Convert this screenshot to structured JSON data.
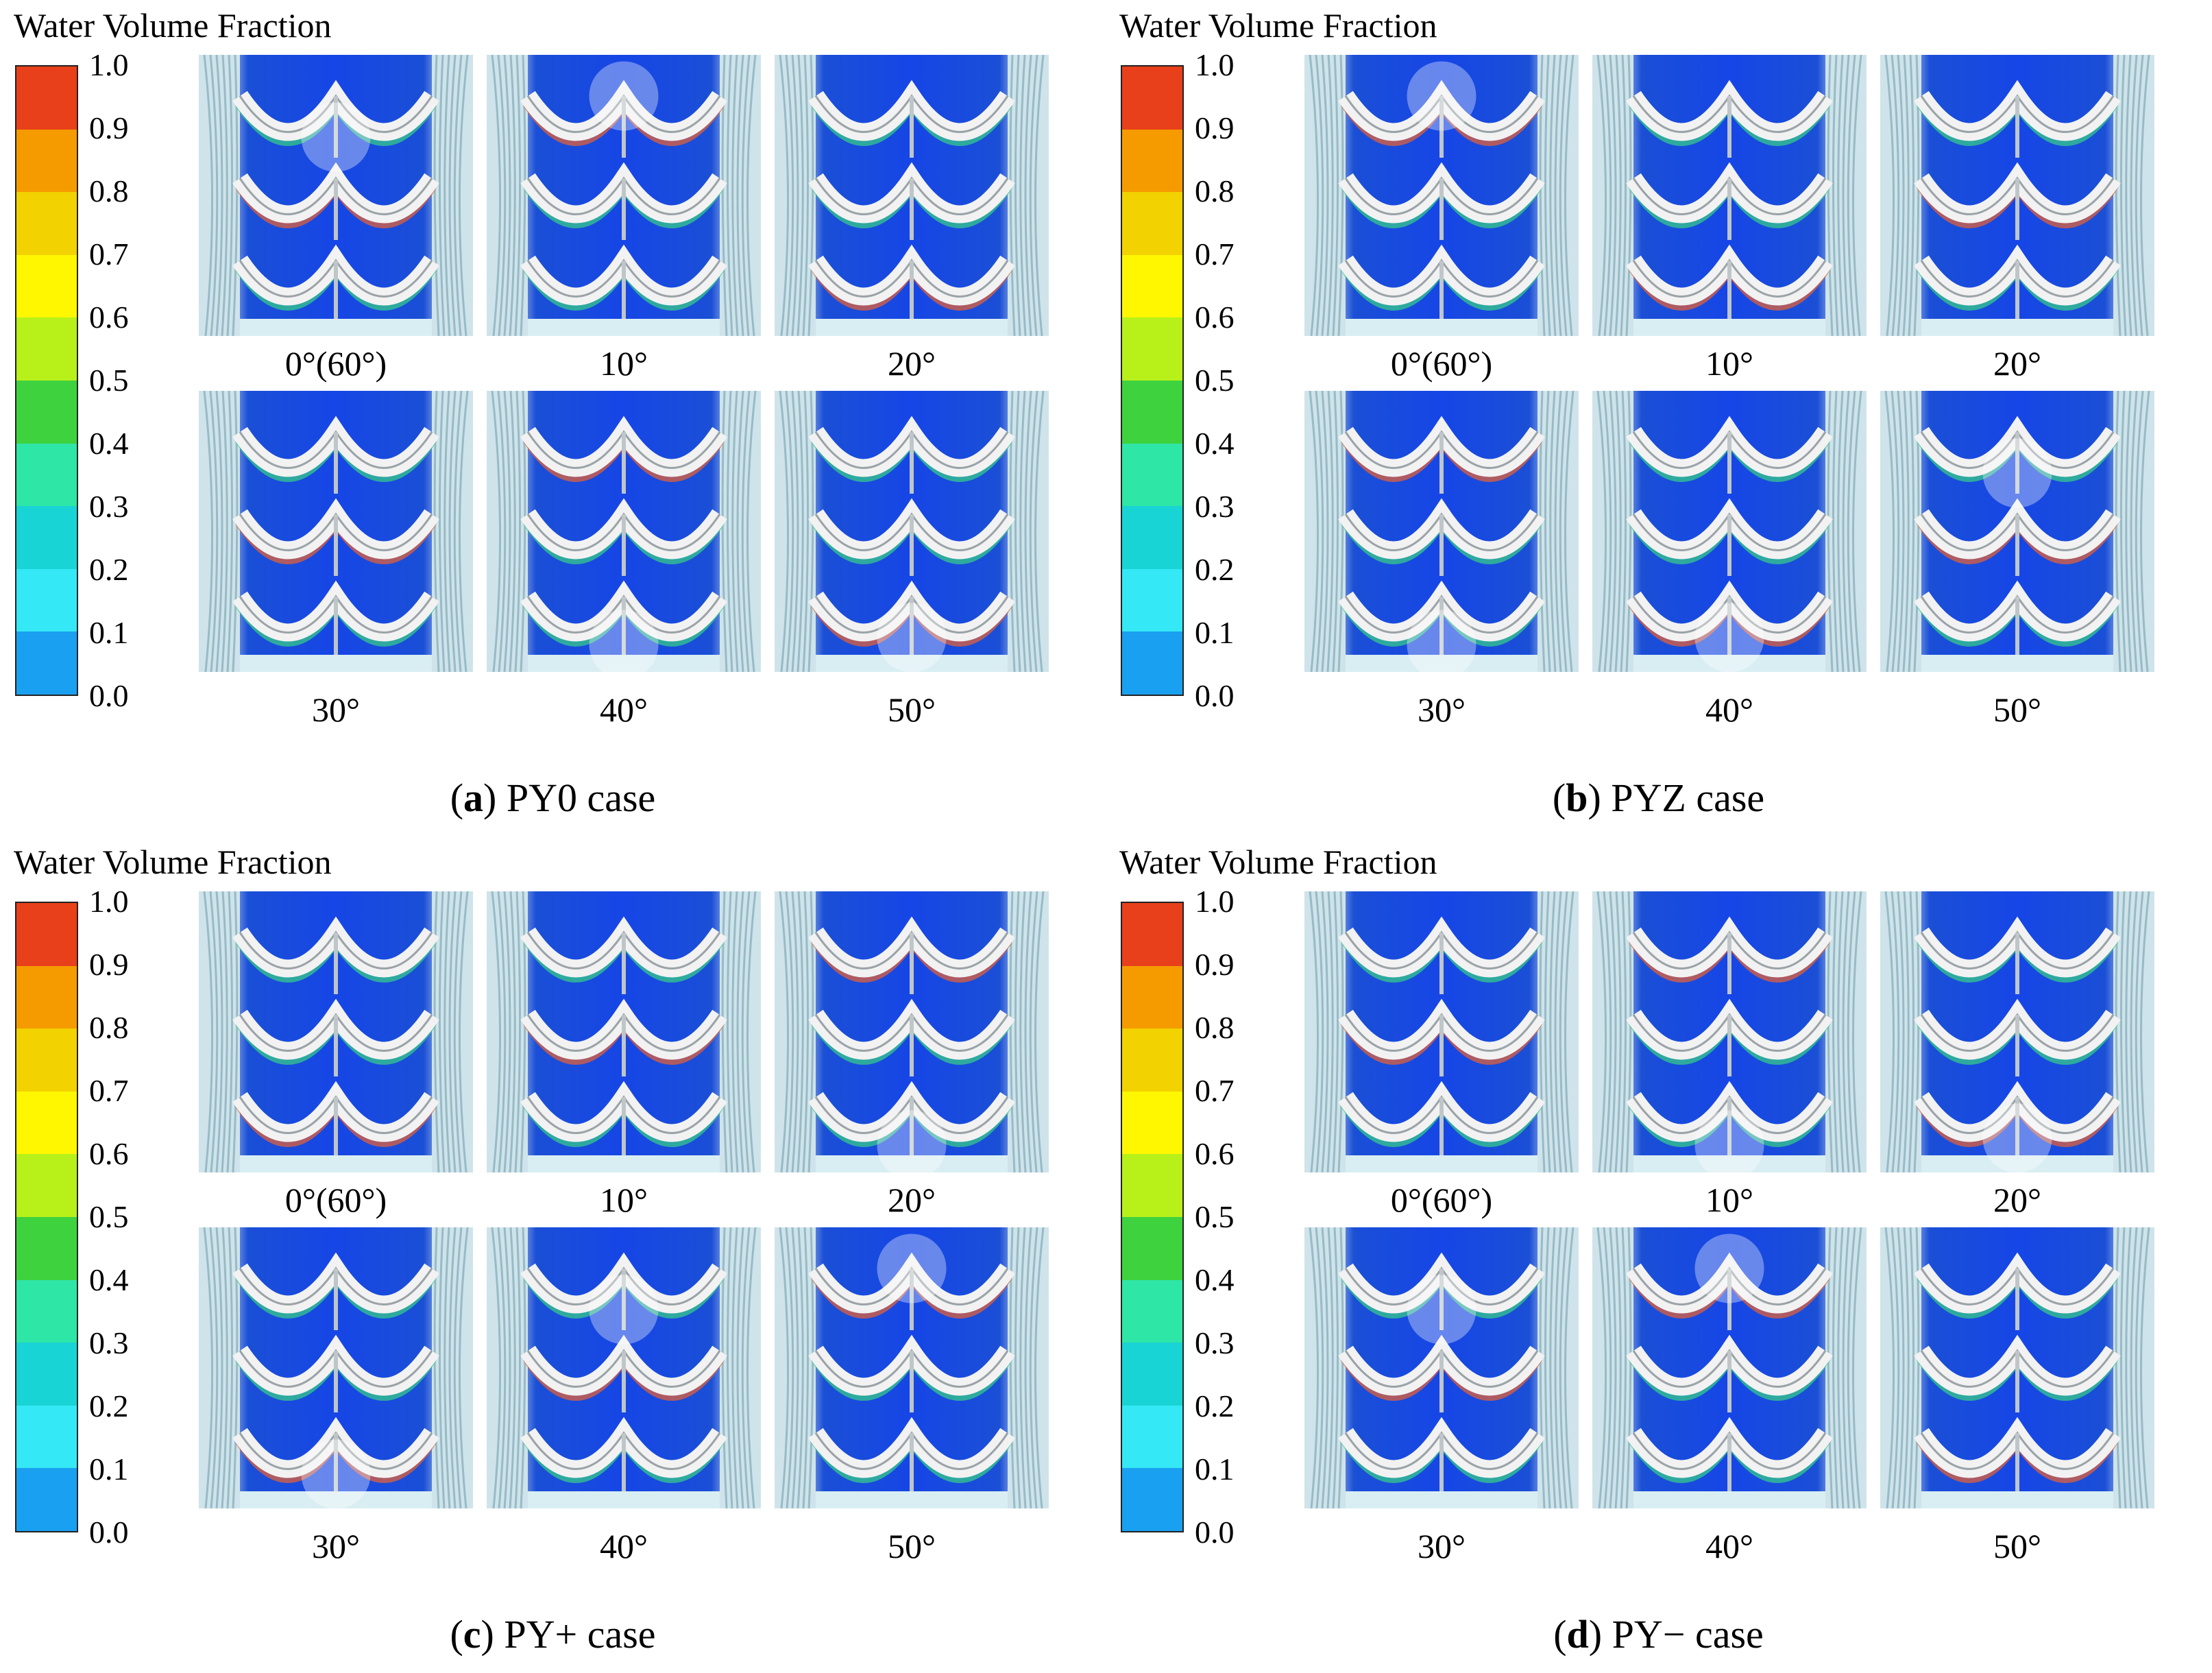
{
  "legend": {
    "title": "Water Volume Fraction",
    "ticks": [
      "1.0",
      "0.9",
      "0.8",
      "0.7",
      "0.6",
      "0.5",
      "0.4",
      "0.3",
      "0.2",
      "0.1",
      "0.0"
    ],
    "colors": [
      "#e8401a",
      "#f59b00",
      "#f2d200",
      "#fff700",
      "#b8f01a",
      "#3ed23e",
      "#2ee6a6",
      "#18d4d4",
      "#35e8f5",
      "#1aa0f0",
      "#0d3ef0"
    ]
  },
  "angles": [
    "0°(60°)",
    "10°",
    "20°",
    "30°",
    "40°",
    "50°"
  ],
  "panels": [
    {
      "letter": "a",
      "caption": " PY0 case"
    },
    {
      "letter": "b",
      "caption": " PYZ case"
    },
    {
      "letter": "c",
      "caption": " PY+ case"
    },
    {
      "letter": "d",
      "caption": " PY− case"
    }
  ]
}
